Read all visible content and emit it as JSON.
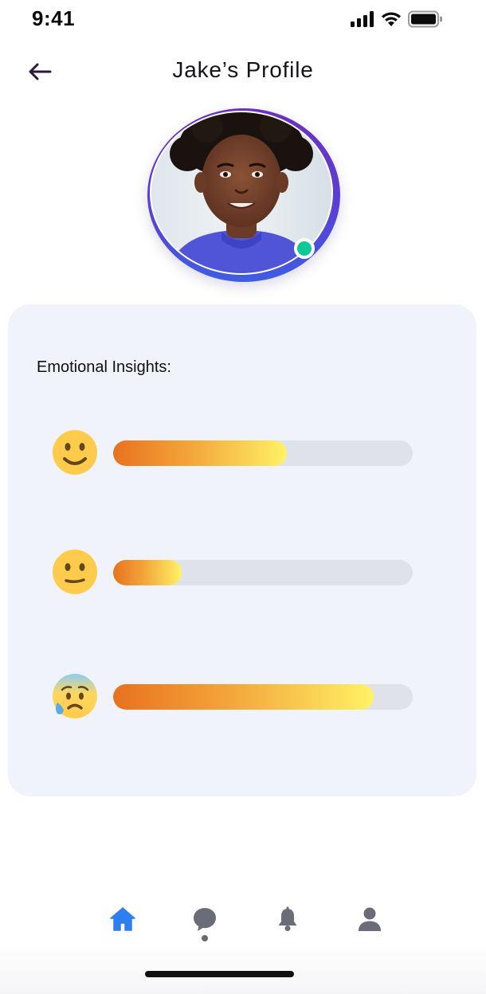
{
  "status_bar": {
    "time": "9:41",
    "icons": [
      "signal-icon",
      "wifi-icon",
      "battery-icon"
    ]
  },
  "header": {
    "title": "Jake’s Profile",
    "back_icon": "back-arrow-icon"
  },
  "profile": {
    "status": "online",
    "status_color": "#10c796"
  },
  "insights": {
    "title": "Emotional Insights:",
    "items": [
      {
        "emoji": "slightly-smiling-face",
        "level": 0.58
      },
      {
        "emoji": "neutral-face",
        "level": 0.23
      },
      {
        "emoji": "anxious-face-with-sweat",
        "level": 0.87
      }
    ]
  },
  "bottom_nav": {
    "items": [
      {
        "icon": "home-icon",
        "active": true
      },
      {
        "icon": "chat-icon",
        "active": false
      },
      {
        "icon": "bell-icon",
        "active": false
      },
      {
        "icon": "user-icon",
        "active": false
      }
    ],
    "active_color": "#2f7ef0",
    "inactive_color": "#6a6d78"
  },
  "colors": {
    "bar_gradient": [
      "#e8711f",
      "#f3a63a",
      "#fff266"
    ],
    "bar_track": "#dfe2e8",
    "card_bg": "#f0f3fa",
    "avatar_ring": [
      "#6d2fbf",
      "#3f5de0"
    ]
  }
}
